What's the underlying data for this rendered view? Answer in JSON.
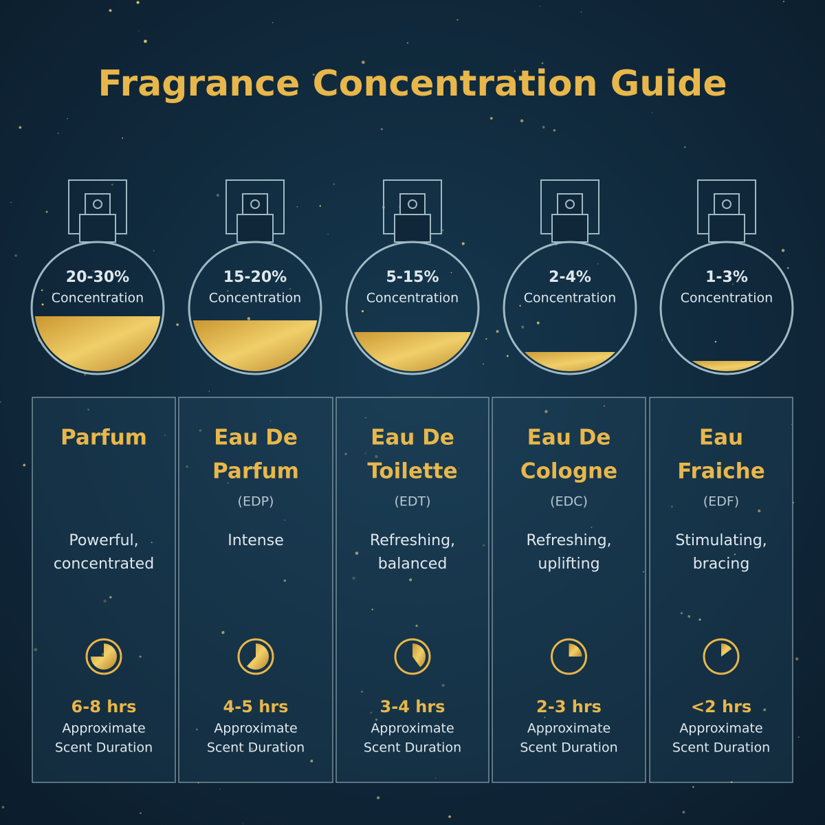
{
  "title": "Fragrance Concentration Guide",
  "columns": [
    {
      "percent": "20-30%",
      "percent_caption": "Concentration",
      "name": [
        "Parfum"
      ],
      "description": [
        "Powerful,",
        "concentrated"
      ],
      "duration": "6-8 hrs",
      "duration_caption": [
        "Approximate",
        "Scent Duration"
      ]
    },
    {
      "percent": "15-20%",
      "percent_caption": "Concentration",
      "name": [
        "Eau De",
        "Parfum"
      ],
      "abbreviation": "(EDP)",
      "description": [
        "Intense"
      ],
      "duration": "4-5 hrs",
      "duration_caption": [
        "Approximate",
        "Scent Duration"
      ]
    },
    {
      "percent": "5-15%",
      "percent_caption": "Concentration",
      "name": [
        "Eau De",
        "Toilette"
      ],
      "abbreviation": "(EDT)",
      "description": [
        "Refreshing,",
        "balanced"
      ],
      "duration": "3-4 hrs",
      "duration_caption": [
        "Approximate",
        "Scent Duration"
      ]
    },
    {
      "percent": "2-4%",
      "percent_caption": "Concentration",
      "name": [
        "Eau De",
        "Cologne"
      ],
      "abbreviation": "(EDC)",
      "description": [
        "Refreshing,",
        "uplifting"
      ],
      "duration": "2-3 hrs",
      "duration_caption": [
        "Approximate",
        "Scent Duration"
      ]
    },
    {
      "percent": "1-3%",
      "percent_caption": "Concentration",
      "name": [
        "Eau",
        "Fraiche"
      ],
      "abbreviation": "(EDF)",
      "description": [
        "Stimulating,",
        "bracing"
      ],
      "duration": "<2 hrs",
      "duration_caption": [
        "Approximate",
        "Scent Duration"
      ]
    }
  ]
}
